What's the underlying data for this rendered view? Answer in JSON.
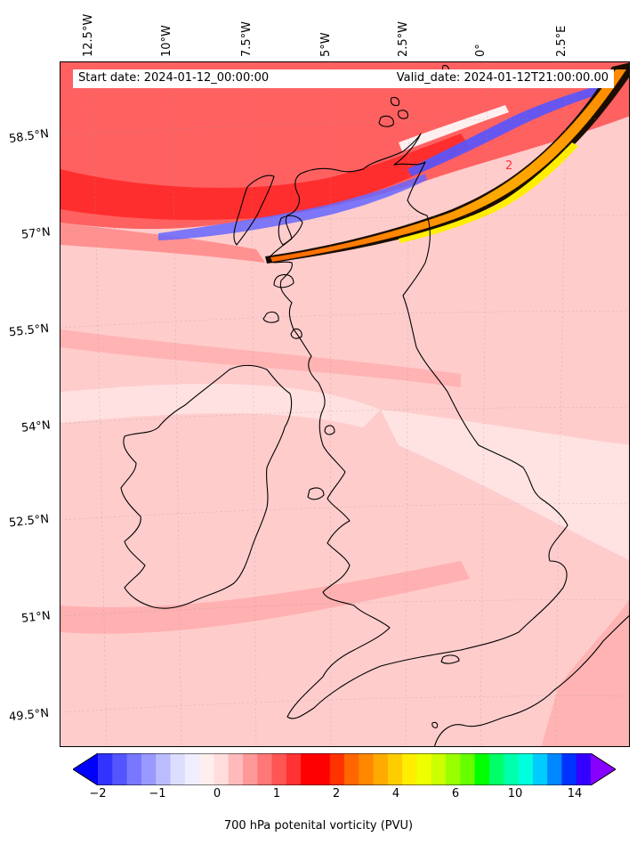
{
  "map": {
    "start_date_text": "Start date: 2024-01-12_00:00:00",
    "valid_date_text": "Valid_date: 2024-01-12T21:00:00.00",
    "lon_labels": [
      "12.5°W",
      "10°W",
      "7.5°W",
      "5°W",
      "2.5°W",
      "0°",
      "2.5°E"
    ],
    "lat_labels": [
      "58.5°N",
      "57°N",
      "55.5°N",
      "54°N",
      "52.5°N",
      "51°N",
      "49.5°N"
    ],
    "contour_label": "2",
    "colors": {
      "background_field": "#ffcccc",
      "strong_positive": "#ff3333",
      "negative": "#6666ff",
      "max_band": "#ffaa00",
      "peak_band": "#ffee00",
      "coastline": "#000000"
    }
  },
  "colorbar": {
    "ticks": [
      "−2",
      "−1",
      "0",
      "1",
      "2",
      "4",
      "6",
      "10",
      "14"
    ],
    "label": "700 hPa potenital vorticity (PVU)",
    "colors": [
      "#0000ff",
      "#3333ff",
      "#5555ff",
      "#7777ff",
      "#9999ff",
      "#bbbbff",
      "#ddddff",
      "#eeeeff",
      "#ffeeee",
      "#ffdddd",
      "#ffbbbb",
      "#ff9999",
      "#ff7777",
      "#ff5555",
      "#ff3333",
      "#ff0000",
      "#ff0000",
      "#ff3300",
      "#ff6600",
      "#ff8800",
      "#ffaa00",
      "#ffcc00",
      "#ffee00",
      "#eeff00",
      "#ccff00",
      "#99ff00",
      "#66ff00",
      "#00ff00",
      "#00ff66",
      "#00ffaa",
      "#00ffdd",
      "#00ccff",
      "#0088ff",
      "#0033ff",
      "#3300ff",
      "#8800ff"
    ]
  }
}
